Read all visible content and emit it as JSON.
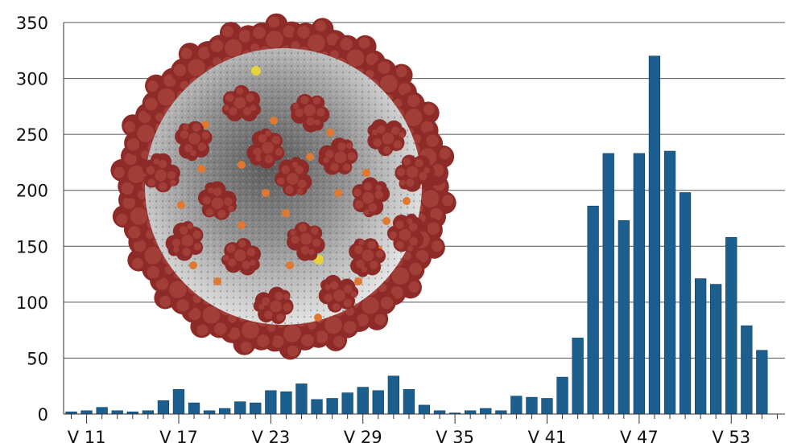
{
  "chart_data": {
    "type": "bar",
    "title": "",
    "xlabel": "",
    "ylabel": "",
    "ylim": [
      0,
      350
    ],
    "yticks": [
      0,
      50,
      100,
      150,
      200,
      250,
      300,
      350
    ],
    "grid": "horizontal",
    "xticks": [
      "V 11",
      "V 17",
      "V 23",
      "V 29",
      "V 35",
      "V 41",
      "V 47",
      "V 53"
    ],
    "weeks": [
      "V 10",
      "V 11",
      "V 12",
      "V 13",
      "V 14",
      "V 15",
      "V 16",
      "V 17",
      "V 18",
      "V 19",
      "V 20",
      "V 21",
      "V 22",
      "V 23",
      "V 24",
      "V 25",
      "V 26",
      "V 27",
      "V 28",
      "V 29",
      "V 30",
      "V 31",
      "V 32",
      "V 33",
      "V 34",
      "V 35",
      "V 36",
      "V 37",
      "V 38",
      "V 39",
      "V 40",
      "V 41",
      "V 42",
      "V 43",
      "V 44",
      "V 45",
      "V 46",
      "V 47",
      "V 48",
      "V 49",
      "V 50",
      "V 51",
      "V 52",
      "V 53",
      "V 1",
      "V 2",
      "V 3"
    ],
    "values": [
      2,
      3,
      6,
      3,
      2,
      3,
      12,
      22,
      10,
      3,
      5,
      11,
      10,
      21,
      20,
      27,
      13,
      14,
      19,
      24,
      21,
      34,
      22,
      8,
      3,
      1,
      3,
      5,
      3,
      16,
      15,
      14,
      33,
      68,
      186,
      233,
      173,
      233,
      320,
      235,
      198,
      121,
      116,
      158,
      79,
      57,
      0
    ],
    "bar_color": "#1c5f8e",
    "background_image": "coronavirus-illustration"
  }
}
